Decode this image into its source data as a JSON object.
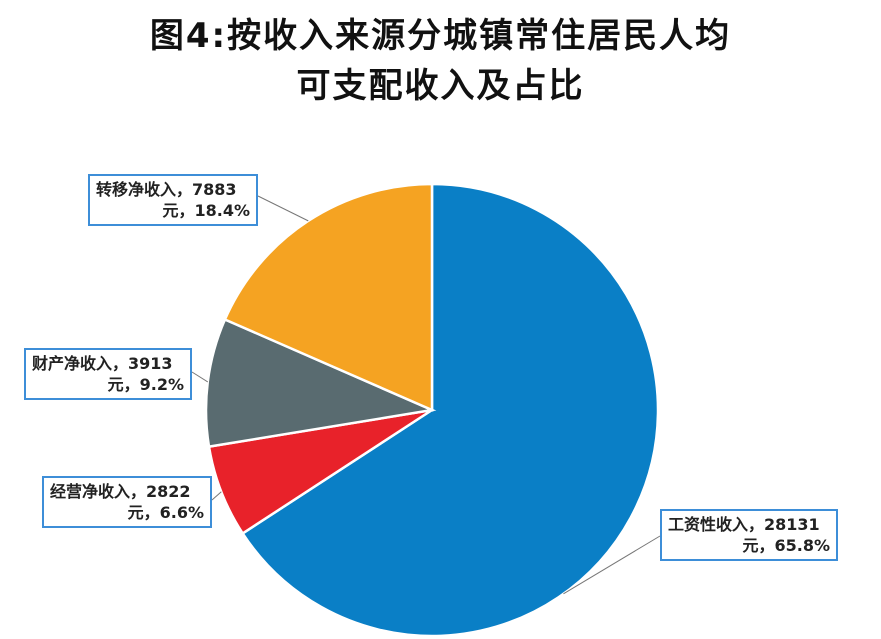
{
  "title_line1": "图4:按收入来源分城镇常住居民人均",
  "title_line2": "可支配收入及占比",
  "chart_data": {
    "type": "pie",
    "slices": [
      {
        "name": "工资性收入",
        "value": 28131,
        "percent": "65.8%",
        "unit": "元",
        "color": "#0a7fc6",
        "label_line1": "工资性收入，28131",
        "label_line2": "元，65.8%"
      },
      {
        "name": "经营净收入",
        "value": 2822,
        "percent": "6.6%",
        "unit": "元",
        "color": "#e8222a",
        "label_line1": "经营净收入，2822",
        "label_line2": "元，6.6%"
      },
      {
        "name": "财产净收入",
        "value": 3913,
        "percent": "9.2%",
        "unit": "元",
        "color": "#596b70",
        "label_line1": "财产净收入，3913",
        "label_line2": "元，9.2%"
      },
      {
        "name": "转移净收入",
        "value": 7883,
        "percent": "18.4%",
        "unit": "元",
        "color": "#f5a322",
        "label_line1": "转移净收入，7883",
        "label_line2": "元，18.4%"
      }
    ]
  }
}
